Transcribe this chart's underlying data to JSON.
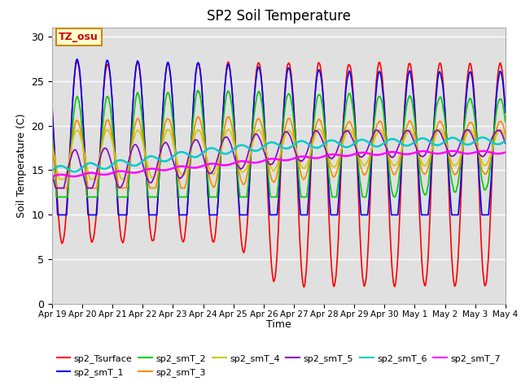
{
  "title": "SP2 Soil Temperature",
  "ylabel": "Soil Temperature (C)",
  "xlabel": "Time",
  "ylim": [
    0,
    31
  ],
  "background_color": "#e0e0e0",
  "fig_background": "#ffffff",
  "annotation_text": "TZ_osu",
  "annotation_color": "#cc0000",
  "annotation_bg": "#ffffcc",
  "annotation_border": "#cc8800",
  "series": {
    "sp2_Tsurface": {
      "color": "#ff0000",
      "lw": 1.2
    },
    "sp2_smT_1": {
      "color": "#0000ff",
      "lw": 1.2
    },
    "sp2_smT_2": {
      "color": "#00cc00",
      "lw": 1.2
    },
    "sp2_smT_3": {
      "color": "#ff8800",
      "lw": 1.2
    },
    "sp2_smT_4": {
      "color": "#cccc00",
      "lw": 1.2
    },
    "sp2_smT_5": {
      "color": "#8800cc",
      "lw": 1.2
    },
    "sp2_smT_6": {
      "color": "#00cccc",
      "lw": 1.8
    },
    "sp2_smT_7": {
      "color": "#ff00ff",
      "lw": 1.8
    }
  },
  "tick_labels": [
    "Apr 19",
    "Apr 20",
    "Apr 21",
    "Apr 22",
    "Apr 23",
    "Apr 24",
    "Apr 25",
    "Apr 26",
    "Apr 27",
    "Apr 28",
    "Apr 29",
    "Apr 30",
    "May 1",
    "May 2",
    "May 3",
    "May 4"
  ],
  "tick_positions": [
    0,
    24,
    48,
    72,
    96,
    120,
    144,
    168,
    192,
    216,
    240,
    264,
    288,
    312,
    336,
    360
  ],
  "legend_order": [
    "sp2_Tsurface",
    "sp2_smT_1",
    "sp2_smT_2",
    "sp2_smT_3",
    "sp2_smT_4",
    "sp2_smT_5",
    "sp2_smT_6",
    "sp2_smT_7"
  ]
}
